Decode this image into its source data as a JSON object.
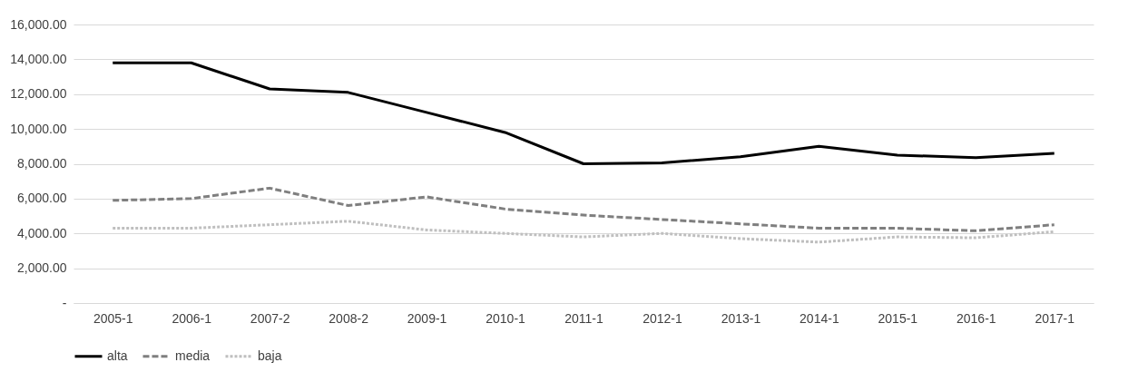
{
  "chart_data": {
    "type": "line",
    "categories": [
      "2005-1",
      "2006-1",
      "2007-2",
      "2008-2",
      "2009-1",
      "2010-1",
      "2011-1",
      "2012-1",
      "2013-1",
      "2014-1",
      "2015-1",
      "2016-1",
      "2017-1"
    ],
    "series": [
      {
        "name": "alta",
        "color": "#000000",
        "line_style": "solid",
        "values": [
          13800,
          13800,
          12300,
          12100,
          10950,
          9800,
          8000,
          8050,
          8400,
          9000,
          8500,
          8350,
          8600
        ]
      },
      {
        "name": "media",
        "color": "#7f7f7f",
        "line_style": "dashed",
        "values": [
          5900,
          6000,
          6600,
          5600,
          6100,
          5400,
          5050,
          4800,
          4550,
          4300,
          4300,
          4150,
          4500
        ]
      },
      {
        "name": "baja",
        "color": "#bfbfbf",
        "line_style": "dotted",
        "values": [
          4300,
          4300,
          4500,
          4700,
          4200,
          4000,
          3800,
          4000,
          3700,
          3500,
          3800,
          3750,
          4100
        ]
      }
    ],
    "ylim": [
      0,
      16000
    ],
    "yticks": [
      {
        "value": 0,
        "label": "-"
      },
      {
        "value": 2000,
        "label": "2,000.00"
      },
      {
        "value": 4000,
        "label": "4,000.00"
      },
      {
        "value": 6000,
        "label": "6,000.00"
      },
      {
        "value": 8000,
        "label": "8,000.00"
      },
      {
        "value": 10000,
        "label": "10,000.00"
      },
      {
        "value": 12000,
        "label": "12,000.00"
      },
      {
        "value": 14000,
        "label": "14,000.00"
      },
      {
        "value": 16000,
        "label": "16,000.00"
      }
    ],
    "grid": "y",
    "legend": "bottom",
    "marker": "none"
  }
}
